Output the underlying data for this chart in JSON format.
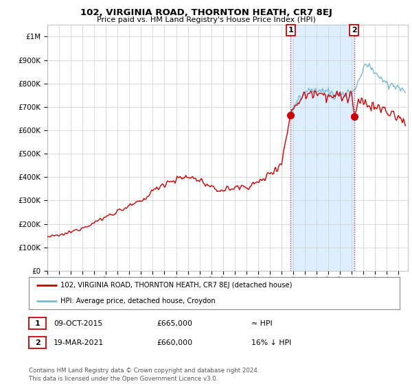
{
  "title": "102, VIRGINIA ROAD, THORNTON HEATH, CR7 8EJ",
  "subtitle": "Price paid vs. HM Land Registry's House Price Index (HPI)",
  "ylim": [
    0,
    1050000
  ],
  "yticks": [
    0,
    100000,
    200000,
    300000,
    400000,
    500000,
    600000,
    700000,
    800000,
    900000,
    1000000
  ],
  "ytick_labels": [
    "£0",
    "£100K",
    "£200K",
    "£300K",
    "£400K",
    "£500K",
    "£600K",
    "£700K",
    "£800K",
    "£900K",
    "£1M"
  ],
  "xlim_start": 1995.0,
  "xlim_end": 2025.8,
  "xtick_years": [
    1995,
    1996,
    1997,
    1998,
    1999,
    2000,
    2001,
    2002,
    2003,
    2004,
    2005,
    2006,
    2007,
    2008,
    2009,
    2010,
    2011,
    2012,
    2013,
    2014,
    2015,
    2016,
    2017,
    2018,
    2019,
    2020,
    2021,
    2022,
    2023,
    2024,
    2025
  ],
  "hpi_color": "#7ab8d9",
  "price_color": "#cc0000",
  "shaded_color": "#ddeeff",
  "sale1_year": 2015.78,
  "sale1_price": 665000,
  "sale2_year": 2021.21,
  "sale2_price": 660000,
  "legend_label1": "102, VIRGINIA ROAD, THORNTON HEATH, CR7 8EJ (detached house)",
  "legend_label2": "HPI: Average price, detached house, Croydon",
  "table_row1": [
    "1",
    "09-OCT-2015",
    "£665,000",
    "≈ HPI"
  ],
  "table_row2": [
    "2",
    "19-MAR-2021",
    "£660,000",
    "16% ↓ HPI"
  ],
  "footer": "Contains HM Land Registry data © Crown copyright and database right 2024.\nThis data is licensed under the Open Government Licence v3.0.",
  "bg_color": "#ffffff",
  "grid_color": "#cccccc"
}
